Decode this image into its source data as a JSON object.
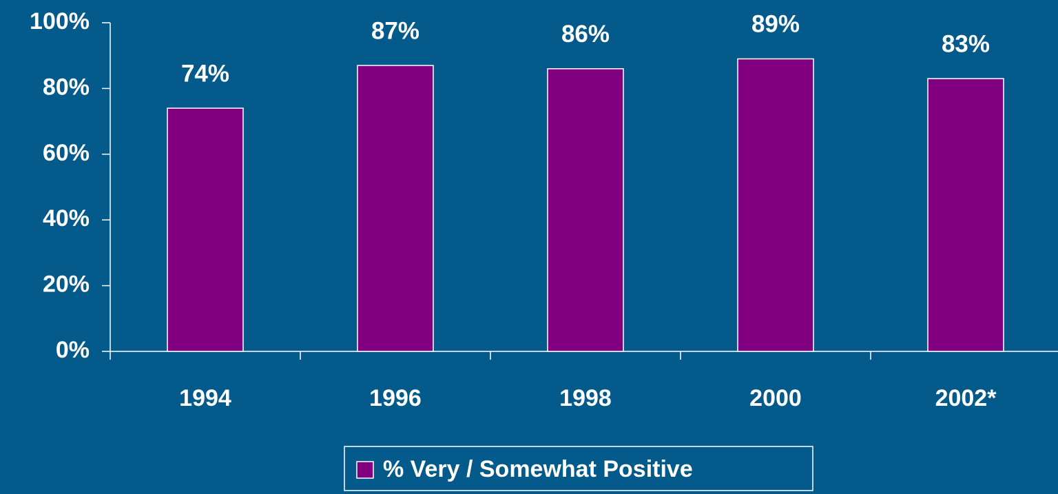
{
  "chart_data": {
    "type": "bar",
    "categories": [
      "1994",
      "1996",
      "1998",
      "2000",
      "2002*"
    ],
    "series": [
      {
        "name": "% Very / Somewhat Positive",
        "color": "#800080",
        "values": [
          74,
          87,
          86,
          89,
          83
        ],
        "value_labels": [
          "74%",
          "87%",
          "86%",
          "89%",
          "83%"
        ]
      }
    ],
    "ylim": [
      0,
      100
    ],
    "yticks": [
      {
        "value": 0,
        "label": "0%"
      },
      {
        "value": 20,
        "label": "20%"
      },
      {
        "value": 40,
        "label": "40%"
      },
      {
        "value": 60,
        "label": "60%"
      },
      {
        "value": 80,
        "label": "80%"
      },
      {
        "value": 100,
        "label": "100%"
      }
    ],
    "grid": false,
    "legend": "bottom"
  }
}
